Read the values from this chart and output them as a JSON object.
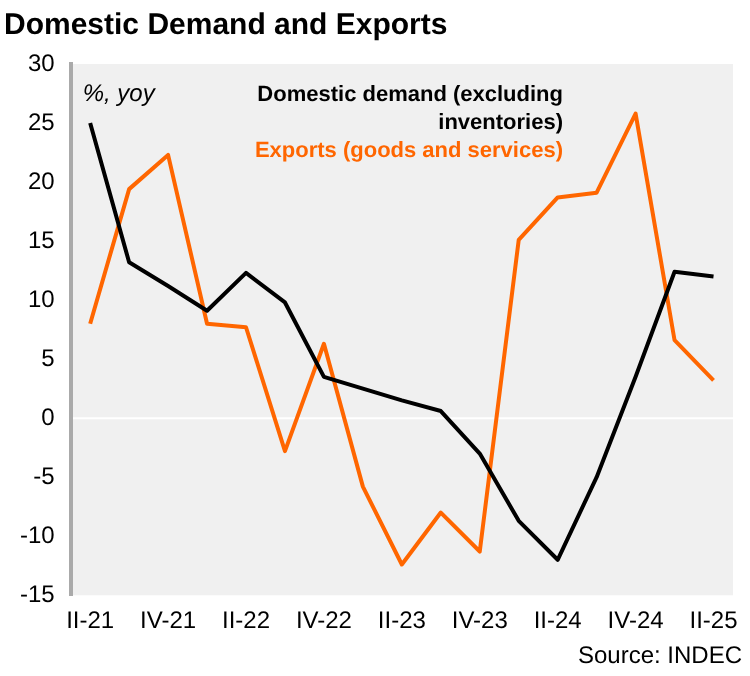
{
  "chart_data": {
    "type": "line",
    "title": "Domestic Demand and Exports",
    "categories": [
      "II-21",
      null,
      "IV-21",
      null,
      "II-22",
      null,
      "IV-22",
      null,
      "II-23",
      null,
      "IV-23",
      null,
      "II-24",
      null,
      "IV-24",
      null,
      "II-25"
    ],
    "series": [
      {
        "name": "Domestic demand (excluding inventories)",
        "color": "#000000",
        "values": [
          25,
          13.2,
          11.2,
          9.1,
          12.3,
          9.8,
          3.5,
          2.5,
          1.5,
          0.6,
          -3,
          -8.7,
          -12,
          -5,
          3.5,
          12.4,
          12.0
        ]
      },
      {
        "name": "Exports (goods and services)",
        "color": "#ff6600",
        "values": [
          8,
          19.4,
          22.3,
          8.0,
          7.7,
          -2.8,
          6.3,
          -5.8,
          -12.4,
          -8,
          -11.3,
          15.1,
          18.7,
          19.1,
          25.8,
          6.6,
          3.2
        ]
      }
    ],
    "ylim": [
      -15,
      30
    ],
    "yticks": [
      -15,
      -10,
      -5,
      0,
      5,
      10,
      15,
      20,
      25,
      30
    ],
    "ref_lines": [
      {
        "axis": "y",
        "value": 0,
        "color": "#ffffff"
      }
    ],
    "annotations": [
      "%, yoy",
      "Source: INDEC"
    ],
    "legend": "top right",
    "grid": false,
    "marker": "none",
    "line_style": "solid"
  }
}
